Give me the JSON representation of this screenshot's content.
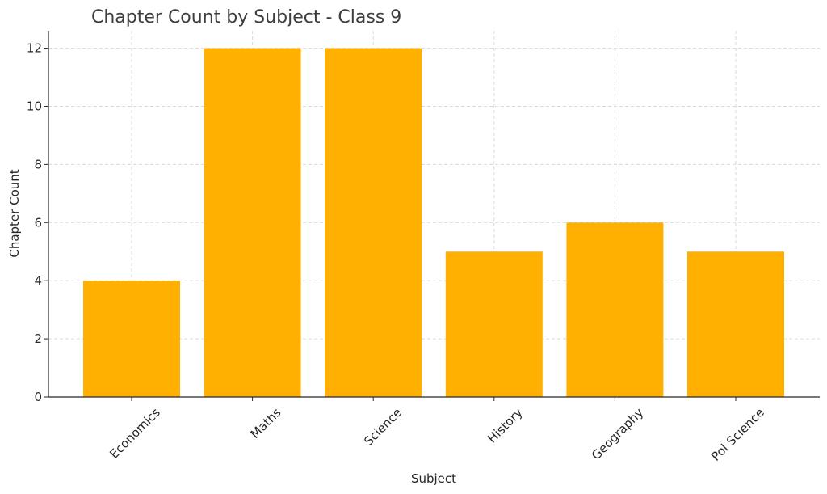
{
  "chart_data": {
    "type": "bar",
    "title": "Chapter Count by Subject - Class 9",
    "xlabel": "Subject",
    "ylabel": "Chapter Count",
    "categories": [
      "Economics",
      "Maths",
      "Science",
      "History",
      "Geography",
      "Pol Science"
    ],
    "values": [
      4,
      12,
      12,
      5,
      6,
      5
    ],
    "ylim": [
      0,
      12.6
    ],
    "yticks": [
      0,
      2,
      4,
      6,
      8,
      10,
      12
    ],
    "grid": true,
    "bar_color": "#FFB000",
    "grid_color": "#d9d9d9",
    "axis_color": "#262626"
  }
}
